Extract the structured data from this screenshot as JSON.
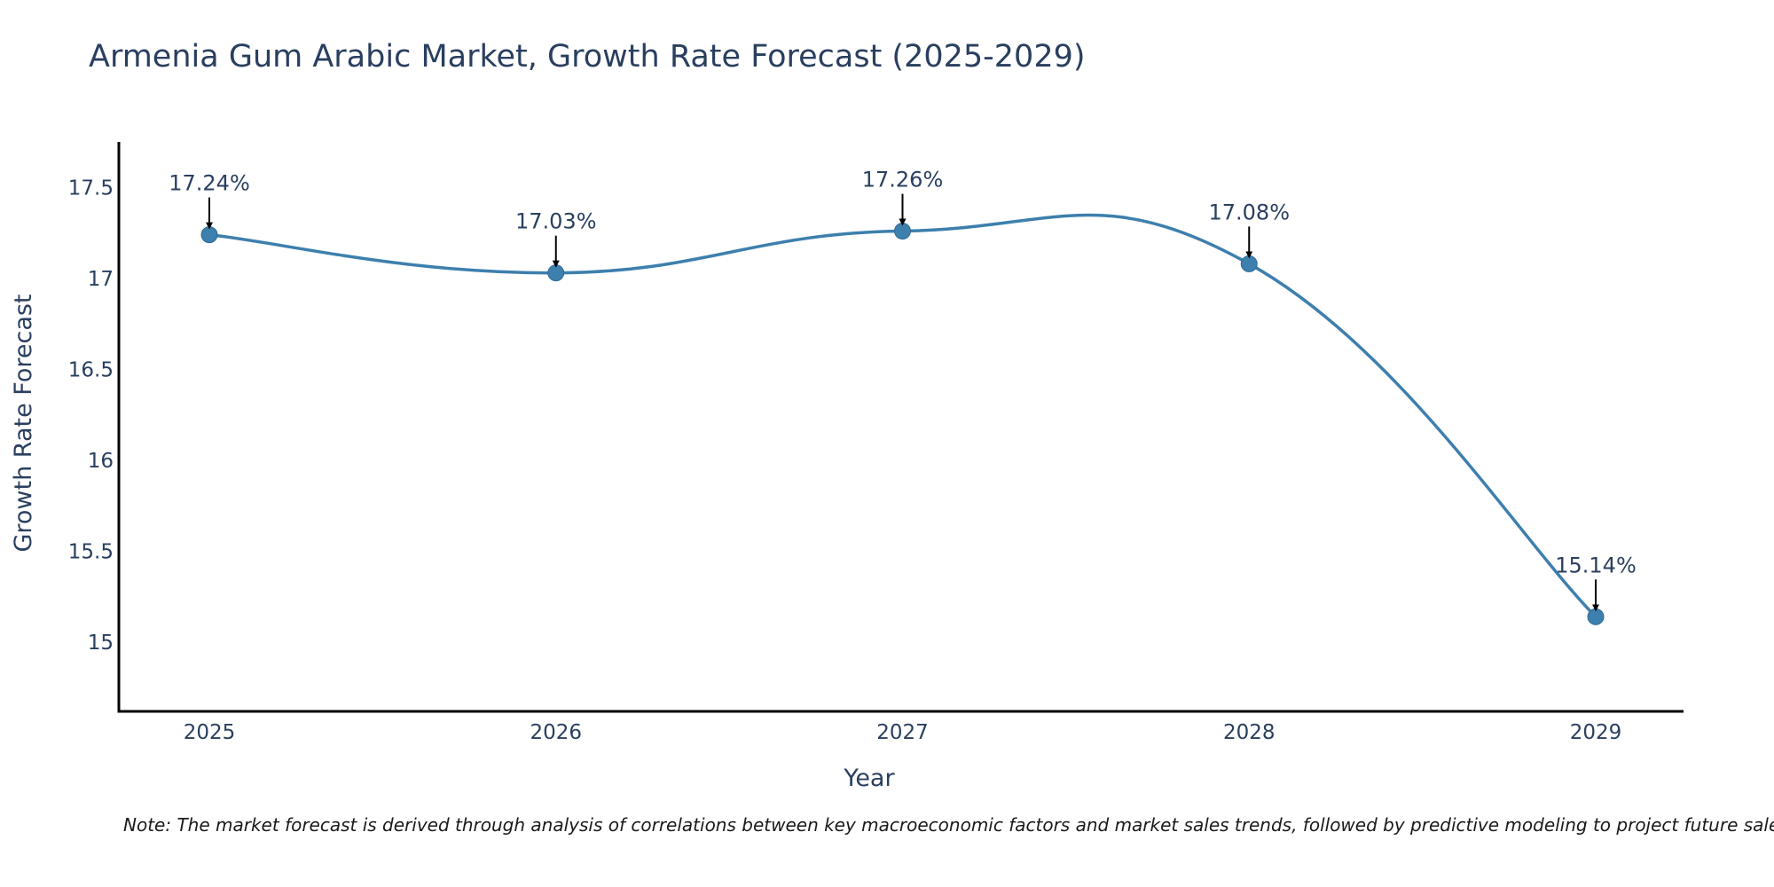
{
  "chart_data": {
    "type": "line",
    "title": "Armenia Gum Arabic Market, Growth Rate Forecast (2025-2029)",
    "xlabel": "Year",
    "ylabel": "Growth Rate Forecast",
    "categories": [
      "2025",
      "2026",
      "2027",
      "2028",
      "2029"
    ],
    "series": [
      {
        "name": "Growth Rate Forecast",
        "values": [
          17.24,
          17.03,
          17.26,
          17.08,
          15.14
        ],
        "labels": [
          "17.24%",
          "17.03%",
          "17.26%",
          "17.08%",
          "15.14%"
        ],
        "color": "#3d7fad"
      }
    ],
    "ylim": [
      14.62,
      17.75
    ],
    "yticks": [
      15,
      15.5,
      16,
      16.5,
      17,
      17.5
    ],
    "ytick_labels": [
      "15",
      "15.5",
      "16",
      "16.5",
      "17",
      "17.5"
    ],
    "grid": false,
    "legend": "none"
  },
  "note": "Note: The market forecast is derived through analysis of correlations between key macroeconomic factors and market sales trends, followed by predictive modeling to project future sales."
}
